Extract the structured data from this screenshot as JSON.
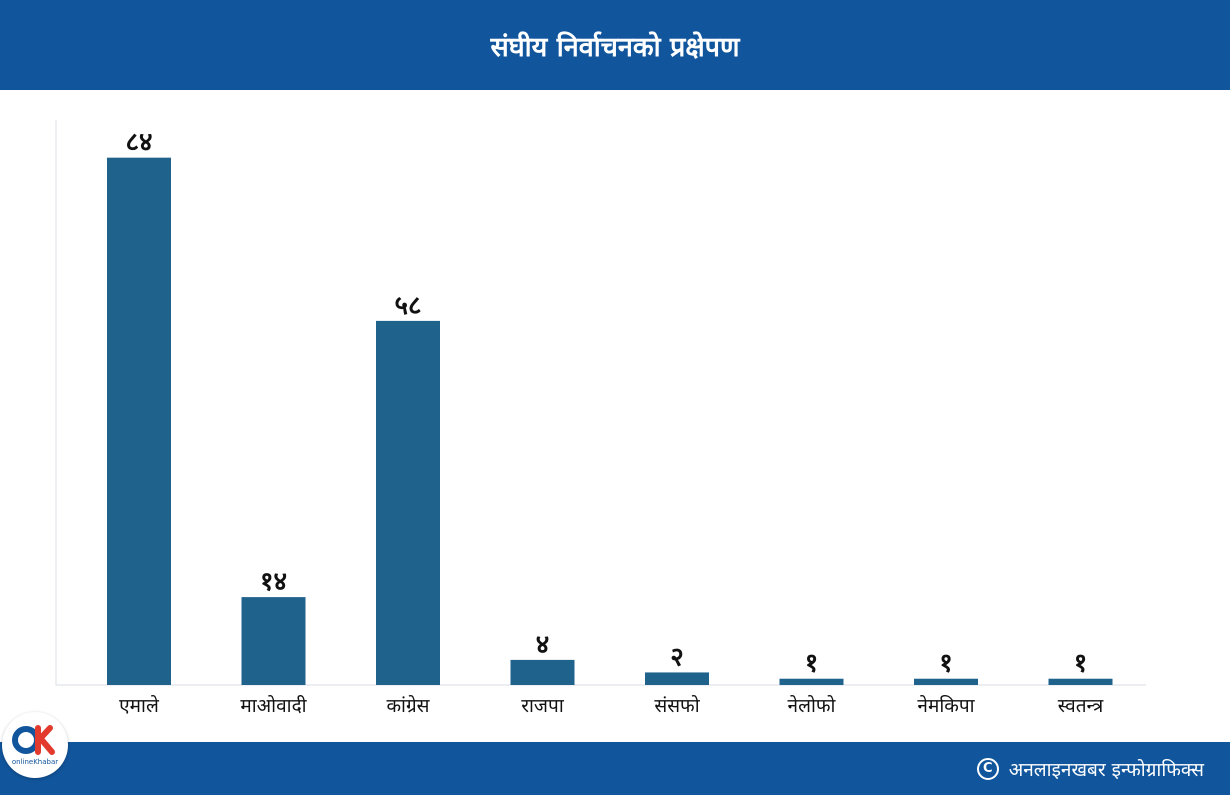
{
  "header": {
    "title": "संघीय निर्वाचनको प्रक्षेपण"
  },
  "footer": {
    "credit": "अनलाइनखबर इन्फोग्राफिक्स",
    "copyright_icon": "copyright-icon"
  },
  "logo": {
    "text": "onlineKhabar",
    "icon": "onlinekhabar-logo"
  },
  "colors": {
    "header_bg": "#11559c",
    "bar": "#1f628c",
    "axis": "#d9dde3"
  },
  "chart_data": {
    "type": "bar",
    "title": "",
    "xlabel": "",
    "ylabel": "",
    "ylim": [
      0,
      90
    ],
    "grid": false,
    "categories": [
      "एमाले",
      "माओवादी",
      "कांग्रेस",
      "राजपा",
      "संसफो",
      "नेलोफो",
      "नेमकिपा",
      "स्वतन्त्र"
    ],
    "values": [
      84,
      14,
      58,
      4,
      2,
      1,
      1,
      1
    ],
    "value_labels": [
      "८४",
      "१४",
      "५८",
      "४",
      "२",
      "१",
      "१",
      "१"
    ]
  }
}
